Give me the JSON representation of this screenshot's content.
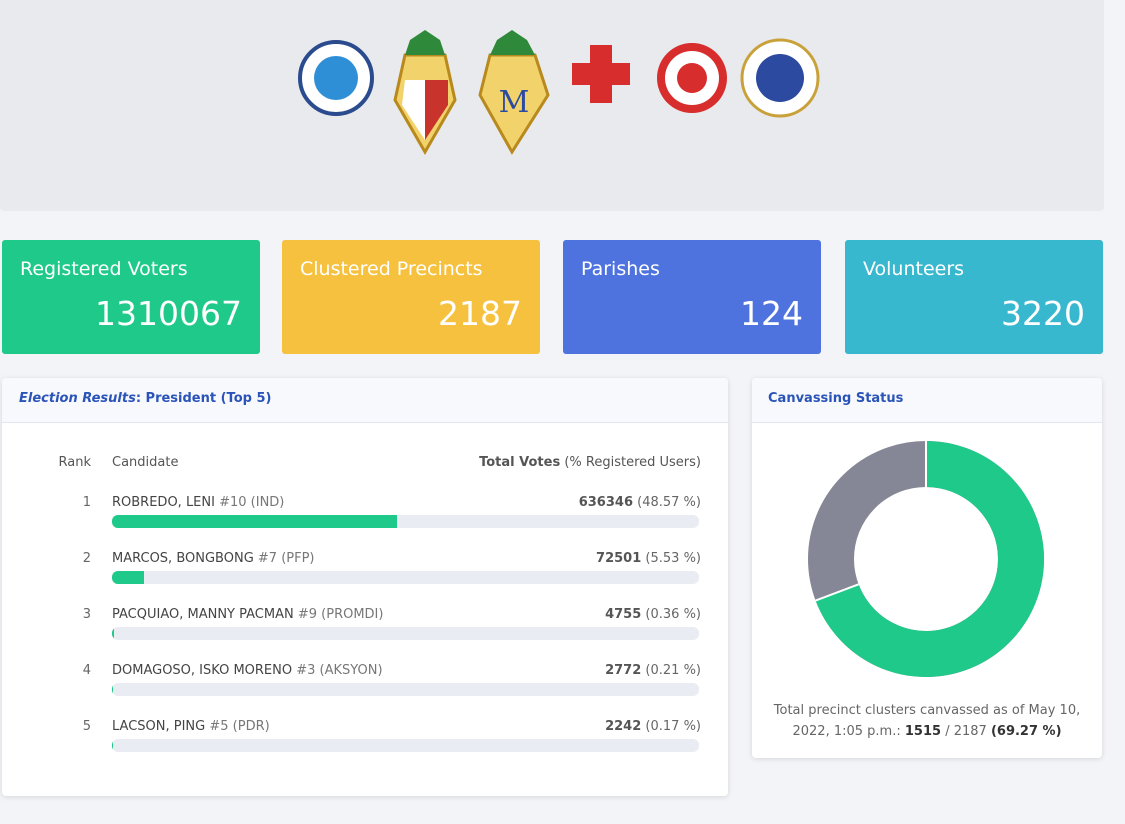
{
  "stats": [
    {
      "label": "Registered Voters",
      "value": 1310067,
      "color": "#1fc98a"
    },
    {
      "label": "Clustered Precincts",
      "value": 2187,
      "color": "#f6c13f"
    },
    {
      "label": "Parishes",
      "value": 124,
      "color": "#4e73df"
    },
    {
      "label": "Volunteers",
      "value": 3220,
      "color": "#38b8cf"
    }
  ],
  "results": {
    "title_prefix": "Election Results",
    "title": ": President (Top 5)",
    "columns": {
      "rank": "Rank",
      "candidate": "Candidate",
      "votes": "Total Votes",
      "votes_note": "(% Registered Users)"
    },
    "bar_color": "#1fc98a",
    "scale_max": 100,
    "rows": [
      {
        "rank": 1,
        "name": "ROBREDO, LENI",
        "tag": "#10 (IND)",
        "votes": 636346,
        "percent": 48.57,
        "percent_label": "(48.57 %)"
      },
      {
        "rank": 2,
        "name": "MARCOS, BONGBONG",
        "tag": "#7 (PFP)",
        "votes": 72501,
        "percent": 5.53,
        "percent_label": "(5.53 %)"
      },
      {
        "rank": 3,
        "name": "PACQUIAO, MANNY PACMAN",
        "tag": "#9 (PROMDI)",
        "votes": 4755,
        "percent": 0.36,
        "percent_label": "(0.36 %)"
      },
      {
        "rank": 4,
        "name": "DOMAGOSO, ISKO MORENO",
        "tag": "#3 (AKSYON)",
        "votes": 2772,
        "percent": 0.21,
        "percent_label": "(0.21 %)"
      },
      {
        "rank": 5,
        "name": "LACSON, PING",
        "tag": "#5 (PDR)",
        "votes": 2242,
        "percent": 0.17,
        "percent_label": "(0.17 %)"
      }
    ]
  },
  "canvass": {
    "title": "Canvassing Status",
    "caption": "Total precinct clusters canvassed as of May 10, 2022, 1:05 p.m.:",
    "canvassed": 1515,
    "separator": "/",
    "total": 2187,
    "percent": 69.27,
    "percent_label": "(69.27 %)",
    "canvassed_color": "#1fc98a",
    "remaining_color": "#858796"
  }
}
